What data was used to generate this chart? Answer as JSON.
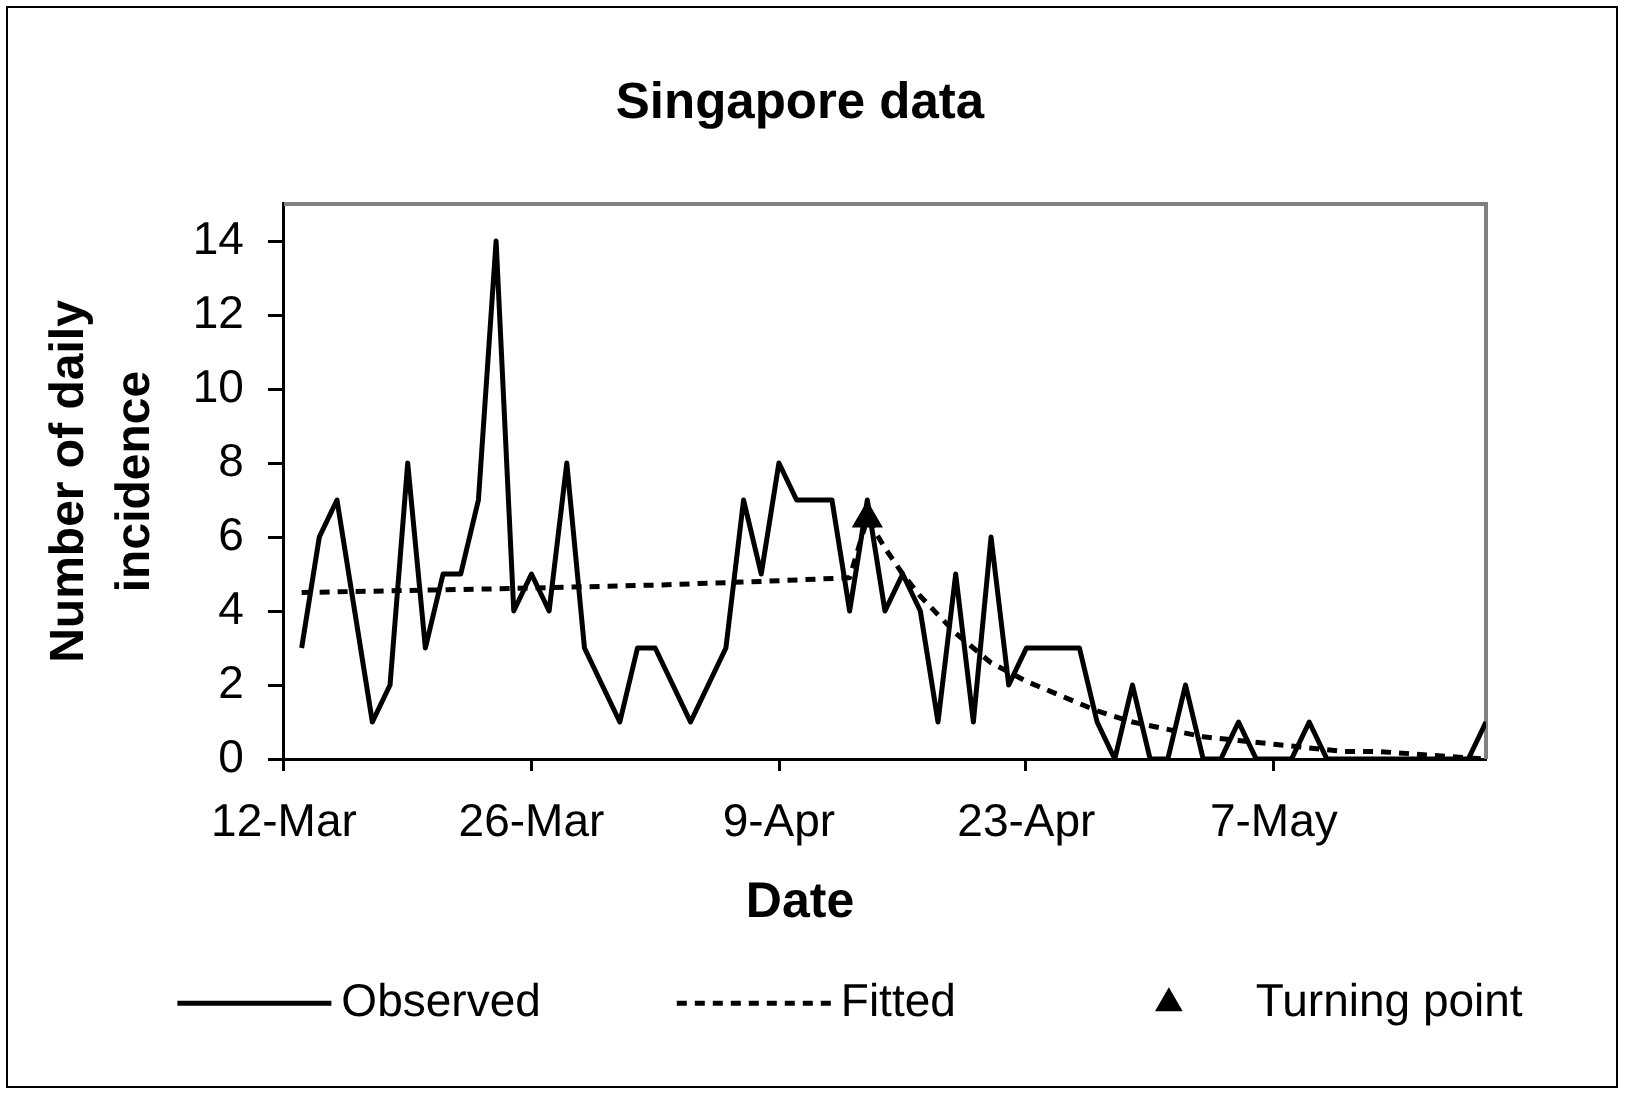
{
  "chart_data": {
    "type": "line",
    "title": "Singapore data",
    "xlabel": "Date",
    "ylabel": "Number of daily incidence",
    "x": [
      "--03-13",
      "--03-14",
      "--03-15",
      "--03-16",
      "--03-17",
      "--03-18",
      "--03-19",
      "--03-20",
      "--03-21",
      "--03-22",
      "--03-23",
      "--03-24",
      "--03-25",
      "--03-26",
      "--03-27",
      "--03-28",
      "--03-29",
      "--03-30",
      "--03-31",
      "--04-01",
      "--04-02",
      "--04-03",
      "--04-04",
      "--04-05",
      "--04-06",
      "--04-07",
      "--04-08",
      "--04-09",
      "--04-10",
      "--04-11",
      "--04-12",
      "--04-13",
      "--04-14",
      "--04-15",
      "--04-16",
      "--04-17",
      "--04-18",
      "--04-19",
      "--04-20",
      "--04-21",
      "--04-22",
      "--04-23",
      "--04-24",
      "--04-25",
      "--04-26",
      "--04-27",
      "--04-28",
      "--04-29",
      "--04-30",
      "--05-01",
      "--05-02",
      "--05-03",
      "--05-04",
      "--05-05",
      "--05-06",
      "--05-07",
      "--05-08",
      "--05-09",
      "--05-10",
      "--05-11",
      "--05-12",
      "--05-13",
      "--05-14",
      "--05-15",
      "--05-16",
      "--05-17",
      "--05-18",
      "--05-19"
    ],
    "xlim": [
      "--03-12",
      "--05-19"
    ],
    "xticks": [
      {
        "value": "--03-12",
        "label": "12-Mar"
      },
      {
        "value": "--03-26",
        "label": "26-Mar"
      },
      {
        "value": "--04-09",
        "label": "9-Apr"
      },
      {
        "value": "--04-23",
        "label": "23-Apr"
      },
      {
        "value": "--05-07",
        "label": "7-May"
      }
    ],
    "ylim": [
      0,
      15
    ],
    "yticks": [
      0,
      2,
      4,
      6,
      8,
      10,
      12,
      14
    ],
    "grid": false,
    "legend": "bottom",
    "series": [
      {
        "name": "Observed",
        "color": "#000000",
        "line_style": "solid",
        "marker": "none",
        "values": [
          3,
          6,
          7,
          4,
          1,
          2,
          8,
          3,
          5,
          5,
          7,
          14,
          4,
          5,
          4,
          8,
          3,
          2,
          1,
          3,
          3,
          2,
          1,
          2,
          3,
          7,
          5,
          8,
          7,
          7,
          7,
          4,
          7,
          4,
          5,
          4,
          1,
          5,
          1,
          6,
          2,
          3,
          3,
          3,
          3,
          1,
          0,
          2,
          0,
          0,
          2,
          0,
          0,
          1,
          0,
          0,
          0,
          1,
          0,
          0,
          0,
          0,
          0,
          0,
          0,
          0,
          0,
          1
        ]
      },
      {
        "name": "Fitted",
        "color": "#000000",
        "line_style": "dashed",
        "marker": "none",
        "x": [
          "--03-13",
          "--03-24",
          "--04-02",
          "--04-08",
          "--04-13",
          "--04-14",
          "--04-15",
          "--04-16",
          "--04-17",
          "--04-18",
          "--04-19",
          "--04-20",
          "--04-21",
          "--04-23",
          "--04-25",
          "--04-27",
          "--04-29",
          "--05-01",
          "--05-03",
          "--05-05",
          "--05-07",
          "--05-09",
          "--05-11",
          "--05-13",
          "--05-16",
          "--05-19"
        ],
        "values": [
          4.5,
          4.6,
          4.7,
          4.8,
          4.9,
          6.5,
          5.7,
          5.0,
          4.4,
          3.9,
          3.4,
          3.0,
          2.6,
          2.1,
          1.7,
          1.3,
          1.0,
          0.8,
          0.6,
          0.5,
          0.4,
          0.3,
          0.2,
          0.2,
          0.1,
          0
        ]
      },
      {
        "name": "Turning point",
        "type": "scatter",
        "color": "#000000",
        "marker": "triangle",
        "x": [
          "--04-14"
        ],
        "values": [
          6.5
        ]
      }
    ]
  }
}
